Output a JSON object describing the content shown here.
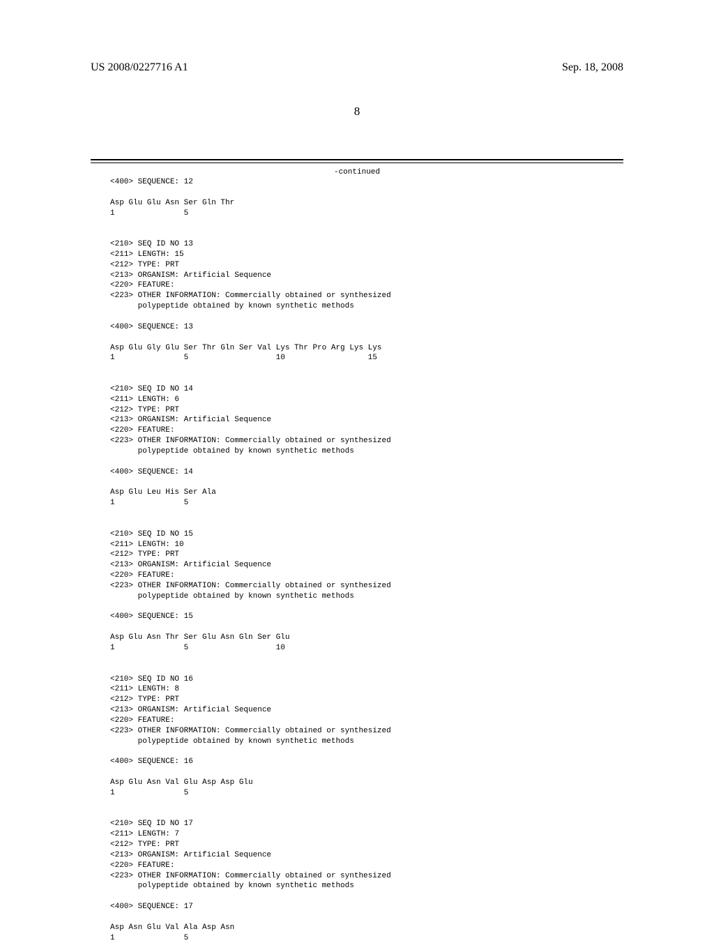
{
  "header": {
    "doc_id": "US 2008/0227716 A1",
    "date": "Sep. 18, 2008"
  },
  "page_number": "8",
  "continued_label": "-continued",
  "sequences": "<400> SEQUENCE: 12\n\nAsp Glu Glu Asn Ser Gln Thr\n1               5\n\n\n<210> SEQ ID NO 13\n<211> LENGTH: 15\n<212> TYPE: PRT\n<213> ORGANISM: Artificial Sequence\n<220> FEATURE:\n<223> OTHER INFORMATION: Commercially obtained or synthesized\n      polypeptide obtained by known synthetic methods\n\n<400> SEQUENCE: 13\n\nAsp Glu Gly Glu Ser Thr Gln Ser Val Lys Thr Pro Arg Lys Lys\n1               5                   10                  15\n\n\n<210> SEQ ID NO 14\n<211> LENGTH: 6\n<212> TYPE: PRT\n<213> ORGANISM: Artificial Sequence\n<220> FEATURE:\n<223> OTHER INFORMATION: Commercially obtained or synthesized\n      polypeptide obtained by known synthetic methods\n\n<400> SEQUENCE: 14\n\nAsp Glu Leu His Ser Ala\n1               5\n\n\n<210> SEQ ID NO 15\n<211> LENGTH: 10\n<212> TYPE: PRT\n<213> ORGANISM: Artificial Sequence\n<220> FEATURE:\n<223> OTHER INFORMATION: Commercially obtained or synthesized\n      polypeptide obtained by known synthetic methods\n\n<400> SEQUENCE: 15\n\nAsp Glu Asn Thr Ser Glu Asn Gln Ser Glu\n1               5                   10\n\n\n<210> SEQ ID NO 16\n<211> LENGTH: 8\n<212> TYPE: PRT\n<213> ORGANISM: Artificial Sequence\n<220> FEATURE:\n<223> OTHER INFORMATION: Commercially obtained or synthesized\n      polypeptide obtained by known synthetic methods\n\n<400> SEQUENCE: 16\n\nAsp Glu Asn Val Glu Asp Asp Glu\n1               5\n\n\n<210> SEQ ID NO 17\n<211> LENGTH: 7\n<212> TYPE: PRT\n<213> ORGANISM: Artificial Sequence\n<220> FEATURE:\n<223> OTHER INFORMATION: Commercially obtained or synthesized\n      polypeptide obtained by known synthetic methods\n\n<400> SEQUENCE: 17\n\nAsp Asn Glu Val Ala Asp Asn\n1               5"
}
